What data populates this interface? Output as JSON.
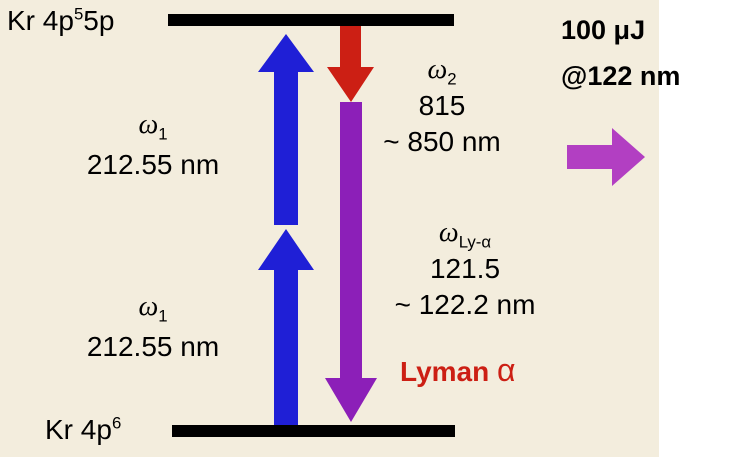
{
  "colors": {
    "panel_bg": "#f3eddd",
    "level_line": "#000000",
    "pump_arrow": "#1f1fd6",
    "stokes_arrow": "#cc1f14",
    "lyman_arrow": "#8c1fb8",
    "output_arrow": "#b23fc2",
    "lyman_label": "#cc1f14"
  },
  "levels": {
    "upper_label": "Kr 4p",
    "upper_sup": "5",
    "upper_tail": "5p",
    "lower_label": "Kr 4p",
    "lower_sup": "6"
  },
  "pump_upper": {
    "symbol": "ω",
    "sub": "1",
    "wavelength": "212.55 nm"
  },
  "pump_lower": {
    "symbol": "ω",
    "sub": "1",
    "wavelength": "212.55 nm"
  },
  "stokes": {
    "symbol": "ω",
    "sub": "2",
    "line1": "815",
    "line2": "~ 850 nm"
  },
  "lyman": {
    "symbol": "ω",
    "sub": "Ly-α",
    "line1": "121.5",
    "line2": "~ 122.2 nm",
    "name": "Lyman",
    "name_symbol": "α"
  },
  "output": {
    "energy": "100 μJ",
    "wavelength": "@122 nm"
  },
  "icons": [
    "arrow-up-icon",
    "arrow-down-icon",
    "arrow-right-icon"
  ]
}
